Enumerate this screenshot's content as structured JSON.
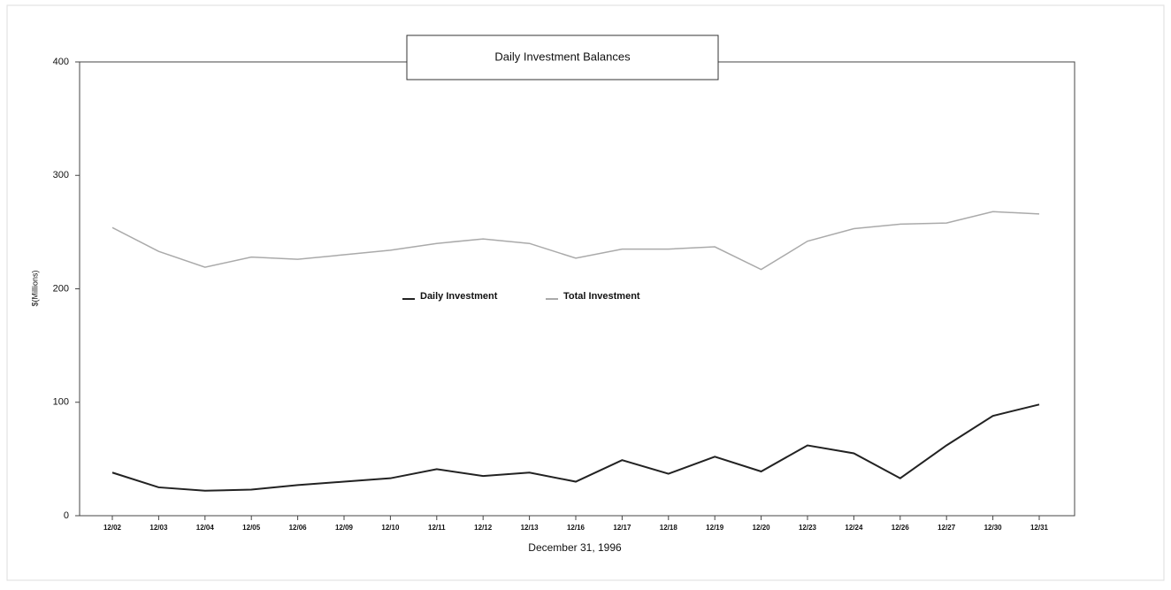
{
  "chart_data": {
    "type": "line",
    "title": "Daily Investment Balances",
    "x_label": "December 31, 1996",
    "y_label": "$(Millions)",
    "categories": [
      "12/02",
      "12/03",
      "12/04",
      "12/05",
      "12/06",
      "12/09",
      "12/10",
      "12/11",
      "12/12",
      "12/13",
      "12/16",
      "12/17",
      "12/18",
      "12/19",
      "12/20",
      "12/23",
      "12/24",
      "12/26",
      "12/27",
      "12/30",
      "12/31"
    ],
    "series": [
      {
        "name": "Daily Investment",
        "color": "#222222",
        "values": [
          38,
          25,
          22,
          23,
          27,
          30,
          33,
          41,
          35,
          38,
          30,
          49,
          37,
          52,
          39,
          62,
          55,
          33,
          62,
          88,
          98
        ]
      },
      {
        "name": "Total Investment",
        "color": "#aaaaaa",
        "values": [
          254,
          233,
          219,
          228,
          226,
          230,
          234,
          240,
          244,
          240,
          227,
          235,
          235,
          237,
          217,
          242,
          253,
          257,
          258,
          268,
          266
        ]
      }
    ],
    "ylim": [
      0,
      400
    ],
    "yticks": [
      0,
      100,
      200,
      300,
      400
    ],
    "grid": false,
    "legend": "center"
  }
}
